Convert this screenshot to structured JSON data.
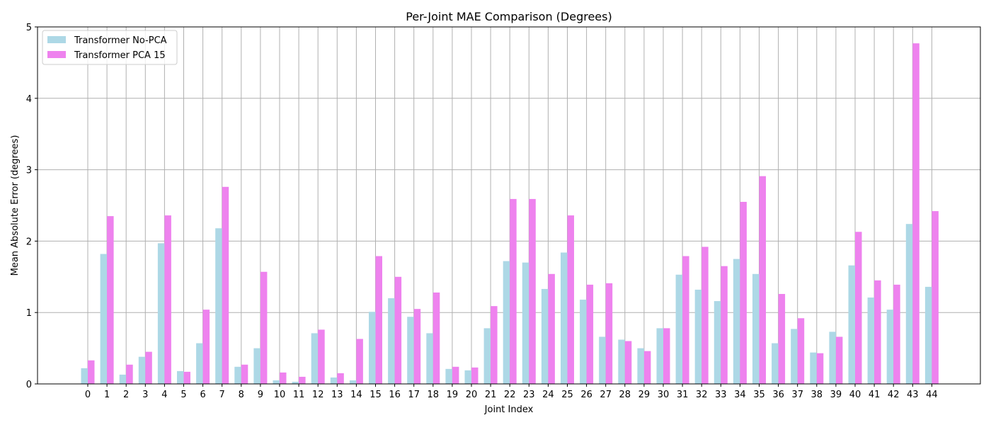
{
  "chart_data": {
    "type": "bar",
    "title": "Per-Joint MAE Comparison (Degrees)",
    "xlabel": "Joint Index",
    "ylabel": "Mean Absolute Error (degrees)",
    "ylim": [
      0,
      5
    ],
    "yticks": [
      "0",
      "1",
      "2",
      "3",
      "4",
      "5"
    ],
    "grid": true,
    "legend_position": "top-left",
    "categories": [
      "0",
      "1",
      "2",
      "3",
      "4",
      "5",
      "6",
      "7",
      "8",
      "9",
      "10",
      "11",
      "12",
      "13",
      "14",
      "15",
      "16",
      "17",
      "18",
      "19",
      "20",
      "21",
      "22",
      "23",
      "24",
      "25",
      "26",
      "27",
      "28",
      "29",
      "30",
      "31",
      "32",
      "33",
      "34",
      "35",
      "36",
      "37",
      "38",
      "39",
      "40",
      "41",
      "42",
      "43",
      "44"
    ],
    "series": [
      {
        "name": "Transformer No-PCA",
        "color": "#add8e6",
        "values": [
          0.22,
          1.82,
          0.13,
          0.38,
          1.97,
          0.18,
          0.57,
          2.18,
          0.24,
          0.5,
          0.05,
          0.03,
          0.71,
          0.09,
          0.05,
          1.01,
          1.2,
          0.94,
          0.71,
          0.21,
          0.19,
          0.78,
          1.72,
          1.7,
          1.33,
          1.84,
          1.18,
          0.66,
          0.62,
          0.5,
          0.78,
          1.53,
          1.32,
          1.16,
          1.75,
          1.54,
          0.57,
          0.77,
          0.44,
          0.73,
          1.66,
          1.21,
          1.04,
          2.24,
          1.36
        ]
      },
      {
        "name": "Transformer PCA 15",
        "color": "#ee82ee",
        "values": [
          0.33,
          2.35,
          0.27,
          0.45,
          2.36,
          0.17,
          1.04,
          2.76,
          0.27,
          1.57,
          0.16,
          0.1,
          0.76,
          0.15,
          0.63,
          1.79,
          1.5,
          1.05,
          1.28,
          0.24,
          0.23,
          1.09,
          2.59,
          2.59,
          1.54,
          2.36,
          1.39,
          1.41,
          0.6,
          0.46,
          0.78,
          1.79,
          1.92,
          1.65,
          2.55,
          2.91,
          1.26,
          0.92,
          0.43,
          0.66,
          2.13,
          1.45,
          1.39,
          4.77,
          2.42
        ]
      }
    ]
  }
}
